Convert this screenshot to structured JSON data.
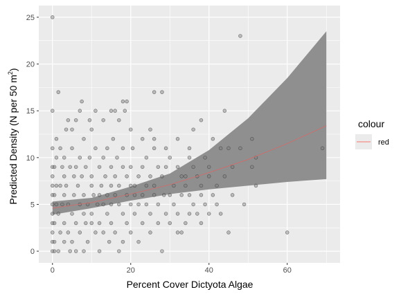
{
  "chart_data": {
    "type": "scatter",
    "xlabel": "Percent Cover Dictyota Algae",
    "ylabel_main": "Predicted Density (N per 50 m",
    "ylabel_sup": "2",
    "ylabel_end": ")",
    "xlim": [
      -3.5,
      73.5
    ],
    "ylim": [
      -1.25,
      26.25
    ],
    "x_ticks": [
      0,
      20,
      40,
      60
    ],
    "y_ticks": [
      0,
      5,
      10,
      15,
      20,
      25
    ],
    "grid": true,
    "legend": {
      "title": "colour",
      "entries": [
        {
          "label": "red",
          "color": "#F8766D"
        }
      ],
      "placement": "right"
    },
    "colors": {
      "panel": "#EBEBEB",
      "grid": "#FFFFFF",
      "ribbon": "#8F8F8F",
      "line": "#C87070",
      "point_fill": "#7F7F7F",
      "point_stroke": "#333333"
    },
    "series": [
      {
        "kind": "fit_line",
        "x": [
          0,
          10,
          20,
          30,
          40,
          50,
          60,
          70
        ],
        "values": [
          4.6,
          5.2,
          6.1,
          7.1,
          8.4,
          9.8,
          11.5,
          13.4
        ]
      },
      {
        "kind": "ribbon_upper",
        "x": [
          0,
          10,
          20,
          30,
          40,
          50,
          60,
          70
        ],
        "values": [
          5.3,
          5.7,
          6.9,
          8.3,
          10.8,
          14.2,
          18.5,
          23.5
        ]
      },
      {
        "kind": "ribbon_lower",
        "x": [
          0,
          10,
          20,
          30,
          40,
          50,
          60,
          70
        ],
        "values": [
          3.9,
          4.6,
          5.4,
          6.1,
          6.6,
          7.0,
          7.4,
          7.7
        ]
      },
      {
        "kind": "observed",
        "points": [
          [
            0,
            25
          ],
          [
            0,
            15
          ],
          [
            0,
            11
          ],
          [
            0,
            9
          ],
          [
            0,
            8
          ],
          [
            0,
            7
          ],
          [
            0,
            6
          ],
          [
            0,
            5
          ],
          [
            0,
            4
          ],
          [
            0,
            3
          ],
          [
            0,
            2
          ],
          [
            0,
            1
          ],
          [
            0,
            0
          ],
          [
            0.5,
            0
          ],
          [
            0.5,
            1
          ],
          [
            0.5,
            3
          ],
          [
            0.5,
            6
          ],
          [
            0.5,
            9
          ],
          [
            1,
            5
          ],
          [
            1,
            7
          ],
          [
            1,
            10
          ],
          [
            1,
            12
          ],
          [
            1.5,
            17
          ],
          [
            1.5,
            4
          ],
          [
            1.5,
            0
          ],
          [
            2,
            11
          ],
          [
            2,
            7
          ],
          [
            2,
            2
          ],
          [
            2.5,
            9
          ],
          [
            2.5,
            5
          ],
          [
            3,
            10
          ],
          [
            3,
            8
          ],
          [
            3,
            6
          ],
          [
            3,
            3
          ],
          [
            3,
            1
          ],
          [
            3.5,
            13
          ],
          [
            3.5,
            7
          ],
          [
            4,
            14
          ],
          [
            4,
            2
          ],
          [
            4,
            5
          ],
          [
            4.5,
            9
          ],
          [
            4.5,
            0
          ],
          [
            5,
            11
          ],
          [
            5,
            13
          ],
          [
            5,
            1
          ],
          [
            5,
            4
          ],
          [
            5.5,
            8
          ],
          [
            5.5,
            6
          ],
          [
            6,
            14
          ],
          [
            6,
            9
          ],
          [
            6,
            3
          ],
          [
            6,
            0
          ],
          [
            6.5,
            7
          ],
          [
            7,
            15
          ],
          [
            7,
            10
          ],
          [
            7,
            5
          ],
          [
            7,
            2
          ],
          [
            7.5,
            16
          ],
          [
            7.5,
            8
          ],
          [
            8,
            12
          ],
          [
            8,
            6
          ],
          [
            8,
            4
          ],
          [
            8,
            0
          ],
          [
            8.5,
            9
          ],
          [
            8.5,
            3
          ],
          [
            9,
            5
          ],
          [
            9,
            1
          ],
          [
            9.5,
            14
          ],
          [
            9.5,
            10
          ],
          [
            10,
            13
          ],
          [
            10,
            8
          ],
          [
            10,
            7
          ],
          [
            10,
            4
          ],
          [
            10,
            3
          ],
          [
            10.5,
            6
          ],
          [
            11,
            15
          ],
          [
            11,
            11
          ],
          [
            11,
            2
          ],
          [
            11.5,
            5
          ],
          [
            12,
            9
          ],
          [
            12,
            6
          ],
          [
            12,
            3
          ],
          [
            12,
            0
          ],
          [
            12.5,
            7
          ],
          [
            13,
            14
          ],
          [
            13,
            10
          ],
          [
            13,
            5
          ],
          [
            13,
            2
          ],
          [
            13.5,
            8
          ],
          [
            14,
            11
          ],
          [
            14,
            6
          ],
          [
            14,
            4
          ],
          [
            14.5,
            1
          ],
          [
            15,
            15
          ],
          [
            15,
            9
          ],
          [
            15,
            7
          ],
          [
            15,
            5
          ],
          [
            15,
            3
          ],
          [
            15.5,
            12
          ],
          [
            16,
            15
          ],
          [
            16,
            8
          ],
          [
            16,
            6
          ],
          [
            16,
            2
          ],
          [
            16.5,
            10
          ],
          [
            17,
            14
          ],
          [
            17,
            7
          ],
          [
            17,
            5
          ],
          [
            17,
            0
          ],
          [
            18,
            16
          ],
          [
            18,
            11
          ],
          [
            18,
            9
          ],
          [
            18,
            4
          ],
          [
            18,
            1
          ],
          [
            18.5,
            15
          ],
          [
            19,
            16
          ],
          [
            19,
            8
          ],
          [
            19,
            6
          ],
          [
            19,
            3
          ],
          [
            20,
            13
          ],
          [
            20,
            9
          ],
          [
            20,
            7
          ],
          [
            20,
            5
          ],
          [
            20,
            2
          ],
          [
            20.5,
            11
          ],
          [
            21,
            7
          ],
          [
            21,
            6
          ],
          [
            21,
            4
          ],
          [
            22,
            8
          ],
          [
            22,
            5
          ],
          [
            22,
            1
          ],
          [
            23,
            12
          ],
          [
            23,
            9
          ],
          [
            23,
            6
          ],
          [
            23,
            3
          ],
          [
            24,
            10
          ],
          [
            24,
            7
          ],
          [
            24,
            5
          ],
          [
            25,
            13
          ],
          [
            25,
            8
          ],
          [
            25,
            4
          ],
          [
            25,
            2
          ],
          [
            26,
            17
          ],
          [
            26,
            12
          ],
          [
            26,
            11
          ],
          [
            26,
            7
          ],
          [
            26,
            6
          ],
          [
            27,
            9
          ],
          [
            27,
            5
          ],
          [
            27,
            3
          ],
          [
            28,
            17
          ],
          [
            28,
            8
          ],
          [
            28,
            0
          ],
          [
            28.5,
            6
          ],
          [
            29,
            11
          ],
          [
            29,
            9
          ],
          [
            29,
            4
          ],
          [
            30,
            10
          ],
          [
            30,
            6
          ],
          [
            30,
            3
          ],
          [
            31,
            7
          ],
          [
            31,
            5
          ],
          [
            32,
            12
          ],
          [
            32,
            9
          ],
          [
            32,
            4
          ],
          [
            32,
            2
          ],
          [
            33,
            8
          ],
          [
            33,
            6
          ],
          [
            33,
            2
          ],
          [
            34,
            8
          ],
          [
            34,
            7
          ],
          [
            34,
            3
          ],
          [
            35,
            11
          ],
          [
            35,
            10
          ],
          [
            35,
            6
          ],
          [
            35,
            4
          ],
          [
            36,
            13
          ],
          [
            36,
            9
          ],
          [
            36,
            5
          ],
          [
            37,
            8
          ],
          [
            37,
            4
          ],
          [
            38,
            14
          ],
          [
            38,
            7
          ],
          [
            38,
            6
          ],
          [
            38,
            3
          ],
          [
            39,
            10
          ],
          [
            39,
            5
          ],
          [
            40,
            9
          ],
          [
            40,
            8
          ],
          [
            40,
            4
          ],
          [
            41,
            12
          ],
          [
            41,
            6
          ],
          [
            42,
            7
          ],
          [
            42,
            5
          ],
          [
            43,
            11
          ],
          [
            43,
            4
          ],
          [
            44,
            15
          ],
          [
            44,
            8
          ],
          [
            45,
            11
          ],
          [
            45,
            2
          ],
          [
            46,
            9
          ],
          [
            46,
            6
          ],
          [
            48,
            23
          ],
          [
            48,
            11
          ],
          [
            49,
            5
          ],
          [
            51,
            12
          ],
          [
            51,
            9
          ],
          [
            52,
            10
          ],
          [
            52,
            7
          ],
          [
            60,
            2
          ],
          [
            69,
            11
          ]
        ]
      }
    ]
  }
}
